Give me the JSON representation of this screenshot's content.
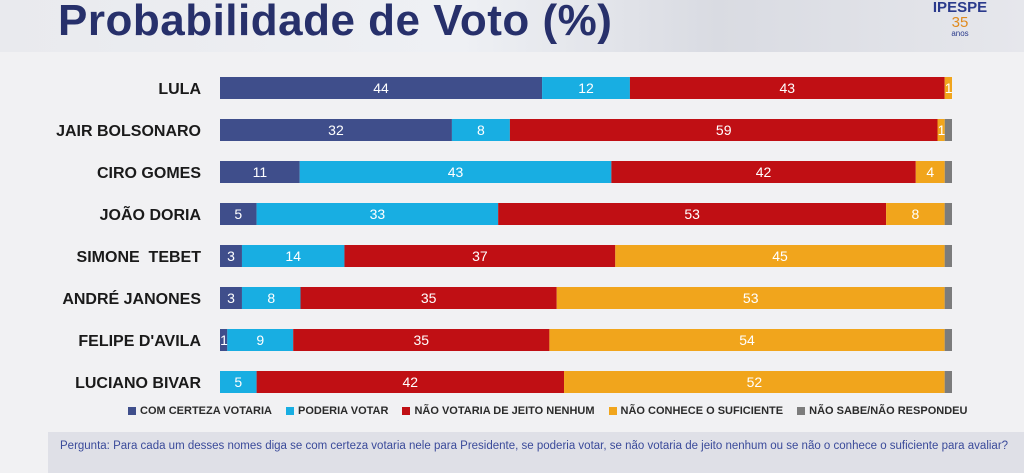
{
  "title": "Probabilidade de Voto (%)",
  "logo": {
    "brand": "IPESPE",
    "years": "35",
    "anos": "anos"
  },
  "colors": {
    "com_certeza": "#3f4e8b",
    "poderia": "#18aee2",
    "nao_votaria": "#c00f14",
    "nao_conhece": "#f1a51c",
    "nao_sabe": "#7c7c7c"
  },
  "chart_data": {
    "type": "bar",
    "orientation": "horizontal",
    "stacked": true,
    "categories": [
      "LULA",
      "JAIR BOLSONARO",
      "CIRO GOMES",
      "JOÃO DORIA",
      "SIMONE  TEBET",
      "ANDRÉ JANONES",
      "FELIPE D'AVILA",
      "LUCIANO BIVAR"
    ],
    "series": [
      {
        "name": "COM CERTEZA VOTARIA",
        "values": [
          44,
          32,
          11,
          5,
          3,
          3,
          1,
          0
        ]
      },
      {
        "name": "PODERIA VOTAR",
        "values": [
          12,
          8,
          43,
          33,
          14,
          8,
          9,
          5
        ]
      },
      {
        "name": "NÃO VOTARIA DE JEITO NENHUM",
        "values": [
          43,
          59,
          42,
          53,
          37,
          35,
          35,
          42
        ]
      },
      {
        "name": "NÃO CONHECE O SUFICIENTE",
        "values": [
          1,
          1,
          4,
          8,
          45,
          53,
          54,
          52
        ]
      },
      {
        "name": "NÃO SABE/NÃO RESPONDEU",
        "values": [
          0,
          1,
          1,
          1,
          1,
          1,
          1,
          1
        ]
      }
    ],
    "xlim": [
      0,
      100
    ],
    "legend_position": "bottom"
  },
  "question": "Pergunta:  Para cada um desses nomes diga se com certeza votaria nele para Presidente, se poderia votar, se não votaria de jeito nenhum ou se não o conhece o suficiente para avaliar?"
}
